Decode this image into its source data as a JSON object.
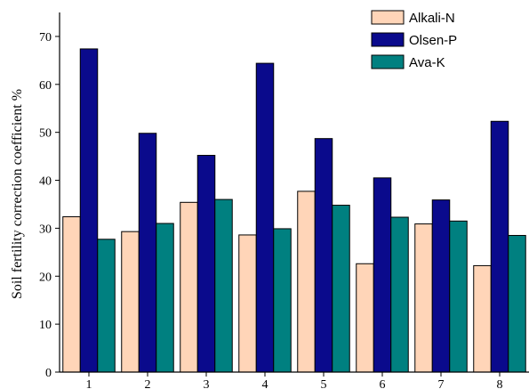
{
  "chart_data": {
    "type": "bar",
    "categories": [
      "1",
      "2",
      "3",
      "4",
      "5",
      "6",
      "7",
      "8"
    ],
    "series": [
      {
        "name": "Alkali-N",
        "color": "#ffd5b8",
        "values": [
          32.4,
          29.3,
          35.4,
          28.6,
          37.7,
          22.6,
          30.9,
          22.2
        ]
      },
      {
        "name": "Olsen-P",
        "color": "#0a0a8c",
        "values": [
          67.4,
          49.8,
          45.2,
          64.4,
          48.7,
          40.5,
          35.9,
          52.3
        ]
      },
      {
        "name": "Ava-K",
        "color": "#008080",
        "values": [
          27.7,
          31.0,
          36.0,
          29.9,
          34.8,
          32.3,
          31.5,
          28.5
        ]
      }
    ],
    "xlabel": "",
    "ylabel": "Soil fertility correction coefficient  %",
    "ylim": [
      0,
      75
    ],
    "yticks": [
      0,
      10,
      20,
      30,
      40,
      50,
      60,
      70
    ],
    "grid": false,
    "legend": "top-right"
  }
}
